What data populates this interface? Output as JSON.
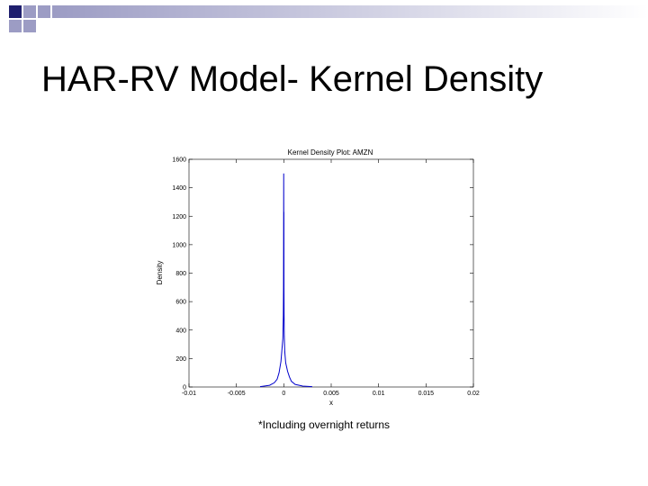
{
  "slide": {
    "title": "HAR-RV Model- Kernel Density",
    "footnote": "*Including overnight returns",
    "decoration_colors": [
      "#1f1f6e",
      "#9c9cc4"
    ]
  },
  "chart_data": {
    "type": "line",
    "title": "Kernel Density Plot: AMZN",
    "xlabel": "x",
    "ylabel": "Density",
    "xlim": [
      -0.01,
      0.02
    ],
    "ylim": [
      0,
      1600
    ],
    "xticks": [
      -0.01,
      -0.005,
      0,
      0.005,
      0.01,
      0.015,
      0.02
    ],
    "xtick_labels": [
      "-0.01",
      "-0.005",
      "0",
      "0.005",
      "0.01",
      "0.015",
      "0.02"
    ],
    "yticks": [
      0,
      200,
      400,
      600,
      800,
      1000,
      1200,
      1400,
      1600
    ],
    "ytick_labels": [
      "0",
      "200",
      "400",
      "600",
      "800",
      "1000",
      "1200",
      "1400",
      "1600"
    ],
    "grid": false,
    "series": [
      {
        "color": "#0000cc",
        "x": [
          -0.0025,
          -0.0015,
          -0.001,
          -0.0007,
          -0.0005,
          -0.0003,
          -0.0002,
          -0.0001,
          -5e-05,
          -3e-05,
          -2e-05,
          -1e-05,
          0,
          1e-05,
          2e-05,
          3e-05,
          5e-05,
          0.0001,
          0.00015,
          0.0002,
          0.0003,
          0.0004,
          0.0006,
          0.0008,
          0.0012,
          0.002,
          0.003
        ],
        "y": [
          2,
          12,
          30,
          55,
          100,
          180,
          260,
          340,
          500,
          700,
          1000,
          1500,
          1080,
          1230,
          700,
          520,
          360,
          250,
          210,
          170,
          140,
          110,
          70,
          40,
          18,
          6,
          2
        ]
      }
    ]
  }
}
